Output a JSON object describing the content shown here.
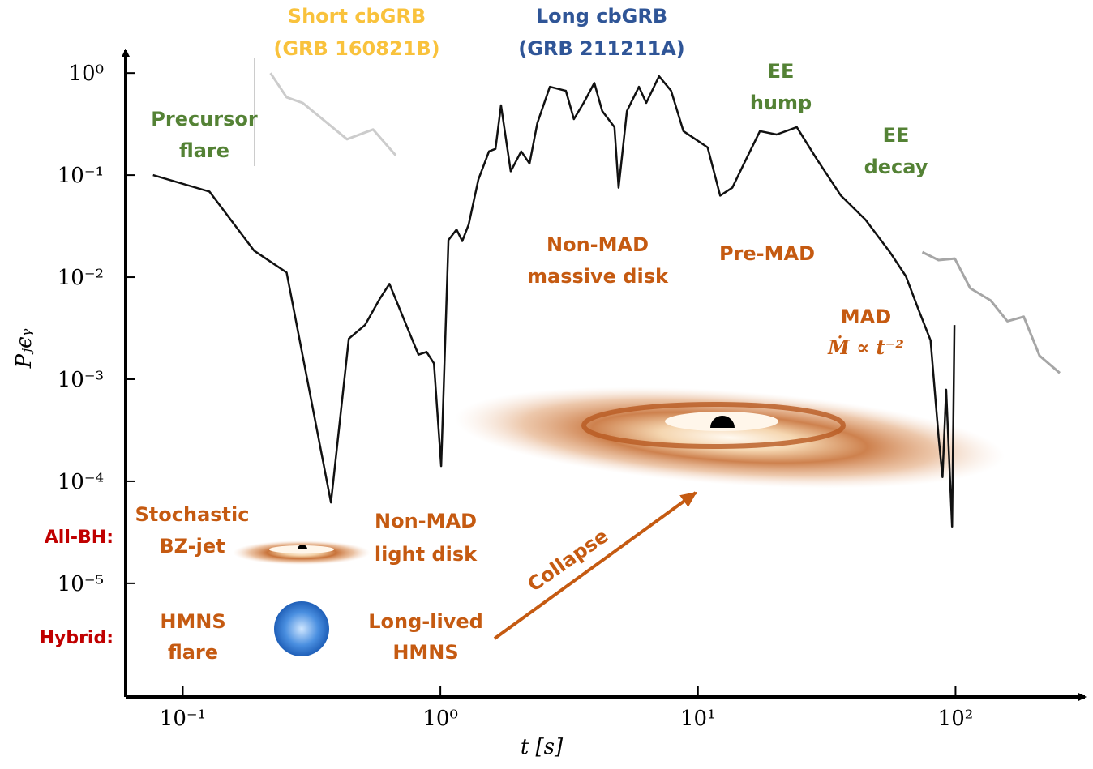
{
  "chart_data": {
    "type": "line",
    "xlabel": "t [s]",
    "ylabel": "Pⱼϵᵧ",
    "xlog": true,
    "ylog": true,
    "xlim": [
      0.06,
      300
    ],
    "ylim": [
      8e-07,
      1.5
    ],
    "xticks": [
      {
        "value": 0.1,
        "label": "10⁻¹"
      },
      {
        "value": 1,
        "label": "10⁰"
      },
      {
        "value": 10,
        "label": "10¹"
      },
      {
        "value": 100,
        "label": "10²"
      }
    ],
    "yticks": [
      {
        "value": 1,
        "label": "10⁰"
      },
      {
        "value": 0.1,
        "label": "10⁻¹"
      },
      {
        "value": 0.01,
        "label": "10⁻²"
      },
      {
        "value": 0.001,
        "label": "10⁻³"
      },
      {
        "value": 0.0001,
        "label": "10⁻⁴"
      },
      {
        "value": 1e-05,
        "label": "10⁻⁵"
      }
    ],
    "series": [
      {
        "color": "#111111",
        "x": [
          0.0766,
          0.127,
          0.189,
          0.253,
          0.376,
          0.441,
          0.51,
          0.581,
          0.634,
          0.765,
          0.822,
          0.884,
          0.944,
          1.007,
          1.075,
          1.156,
          1.216,
          1.288,
          1.405,
          1.544,
          1.637,
          1.72,
          1.876,
          2.06,
          2.22,
          2.38,
          2.66,
          3.07,
          3.3,
          3.6,
          3.96,
          4.25,
          4.74,
          4.92,
          5.3,
          5.9,
          6.3,
          7.06,
          7.87,
          8.78,
          9.78,
          10.9,
          12.2,
          13.6,
          15.1,
          17.4,
          20.2,
          24.2,
          29.0,
          35.9,
          44.7,
          55.6,
          64.2,
          71.6,
          80,
          86,
          89,
          92,
          97,
          99
        ],
        "values": [
          0.1,
          0.0689,
          0.0182,
          0.0111,
          6.2e-05,
          0.0025,
          0.0034,
          0.0061,
          0.0086,
          0.0027,
          0.00174,
          0.00185,
          0.00143,
          0.000141,
          0.0231,
          0.0293,
          0.0226,
          0.0327,
          0.0905,
          0.171,
          0.181,
          0.483,
          0.109,
          0.171,
          0.13,
          0.323,
          0.734,
          0.67,
          0.354,
          0.51,
          0.8,
          0.425,
          0.295,
          0.0754,
          0.425,
          0.734,
          0.51,
          0.93,
          0.67,
          0.27,
          0.225,
          0.187,
          0.063,
          0.0754,
          0.13,
          0.27,
          0.25,
          0.295,
          0.142,
          0.063,
          0.0366,
          0.0176,
          0.0102,
          0.0049,
          0.0024,
          0.00027,
          0.00011,
          0.00079,
          3.6e-05,
          0.0034
        ]
      },
      {
        "color": "#cccccc",
        "x": [
          0.219,
          0.253,
          0.292,
          0.434,
          0.548,
          0.671
        ],
        "values": [
          1.0,
          0.579,
          0.51,
          0.225,
          0.28,
          0.156
        ]
      },
      {
        "color": "#a6a6a6",
        "x": [
          74.3,
          85.9,
          99.3,
          114,
          137,
          159,
          184,
          212,
          254
        ],
        "values": [
          0.0176,
          0.0147,
          0.0152,
          0.0078,
          0.0059,
          0.0037,
          0.0041,
          0.0017,
          0.00115
        ]
      }
    ],
    "annotations": [
      {
        "lines": [
          "Short cbGRB",
          "(GRB 160821B)"
        ],
        "color": "#f9c23c"
      },
      {
        "lines": [
          "Long cbGRB",
          "(GRB 211211A)"
        ],
        "color": "#2f5597"
      },
      {
        "lines": [
          "Precursor",
          "flare"
        ],
        "color": "#548235"
      },
      {
        "lines": [
          "EE",
          "hump"
        ],
        "color": "#548235"
      },
      {
        "lines": [
          "EE",
          "decay"
        ],
        "color": "#548235"
      },
      {
        "lines": [
          "Non-MAD",
          "massive disk"
        ],
        "color": "#c55a11"
      },
      {
        "lines": [
          "Pre-MAD"
        ],
        "color": "#c55a11"
      },
      {
        "lines": [
          "MAD",
          "Ṁ ∝ t⁻²"
        ],
        "color": "#c55a11"
      },
      {
        "lines": [
          "Stochastic",
          "BZ-jet"
        ],
        "color": "#c55a11"
      },
      {
        "lines": [
          "Non-MAD",
          "light disk"
        ],
        "color": "#c55a11"
      },
      {
        "lines": [
          "HMNS",
          "flare"
        ],
        "color": "#c55a11"
      },
      {
        "lines": [
          "Long-lived",
          "HMNS"
        ],
        "color": "#c55a11"
      },
      {
        "lines": [
          "All-BH:"
        ],
        "color": "#c00000"
      },
      {
        "lines": [
          "Hybrid:"
        ],
        "color": "#c00000"
      },
      {
        "lines": [
          "Collapse"
        ],
        "color": "#c55a11"
      }
    ]
  }
}
